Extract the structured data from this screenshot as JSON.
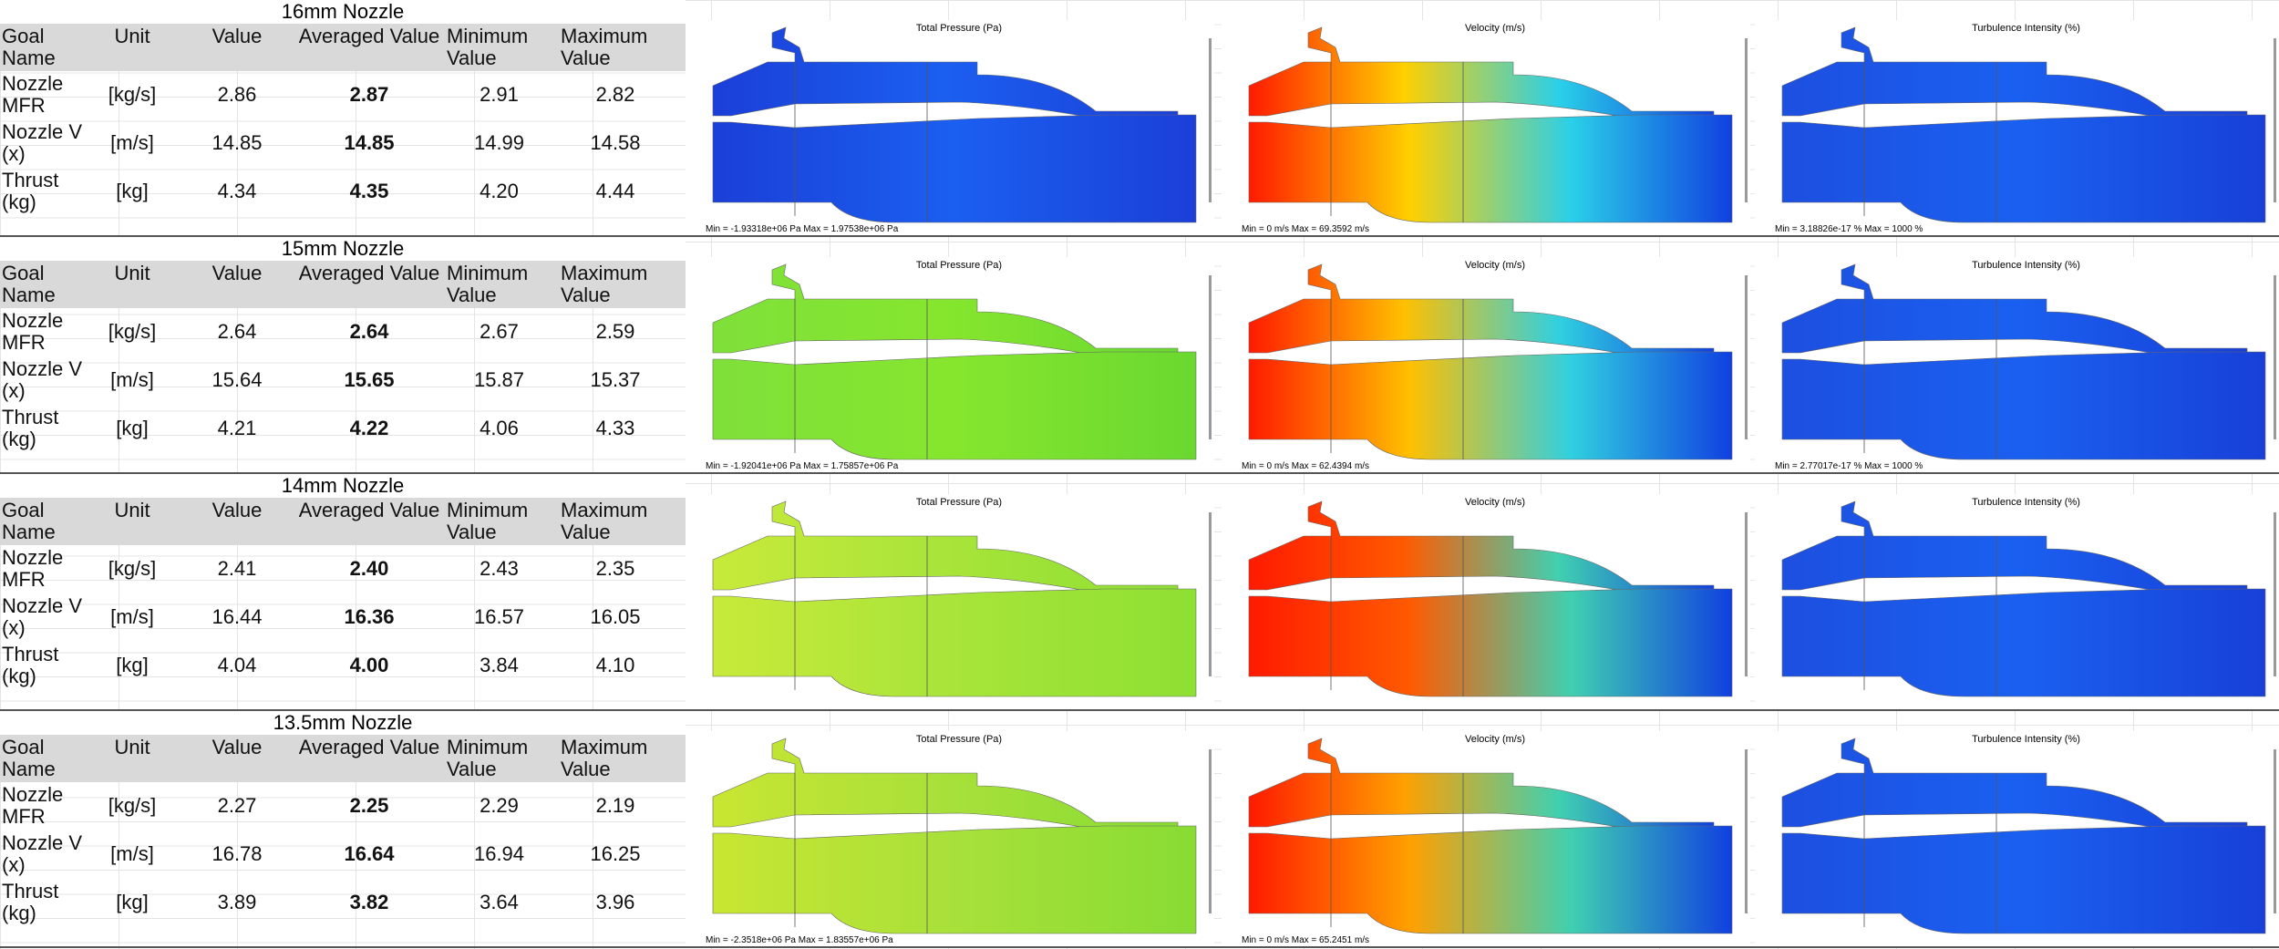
{
  "blocks": [
    {
      "title": "16mm Nozzle",
      "headers": [
        "Goal Name",
        "Unit",
        "Value",
        "Averaged Value",
        "Minimum Value",
        "Maximum Value"
      ],
      "rows": [
        [
          "Nozzle MFR",
          "[kg/s]",
          "2.86",
          "2.87",
          "2.91",
          "2.82"
        ],
        [
          "Nozzle V (x)",
          "[m/s]",
          "14.85",
          "14.85",
          "14.99",
          "14.58"
        ],
        [
          "Thrust (kg)",
          "[kg]",
          "4.34",
          "4.35",
          "4.20",
          "4.44"
        ]
      ],
      "panels": [
        {
          "title": "Total Pressure (Pa)",
          "footer": "Min = -1.93318e+06 Pa   Max = 1.97538e+06 Pa"
        },
        {
          "title": "Velocity (m/s)",
          "footer": "Min = 0 m/s   Max = 69.3592 m/s"
        },
        {
          "title": "Turbulence Intensity (%)",
          "footer": "Min = 3.18826e-17 %   Max = 1000 %"
        }
      ]
    },
    {
      "title": "15mm Nozzle",
      "headers": [
        "Goal Name",
        "Unit",
        "Value",
        "Averaged Value",
        "Minimum Value",
        "Maximum Value"
      ],
      "rows": [
        [
          "Nozzle MFR",
          "[kg/s]",
          "2.64",
          "2.64",
          "2.67",
          "2.59"
        ],
        [
          "Nozzle V (x)",
          "[m/s]",
          "15.64",
          "15.65",
          "15.87",
          "15.37"
        ],
        [
          "Thrust (kg)",
          "[kg]",
          "4.21",
          "4.22",
          "4.06",
          "4.33"
        ]
      ],
      "panels": [
        {
          "title": "Total Pressure (Pa)",
          "footer": "Min = -1.92041e+06 Pa   Max = 1.75857e+06 Pa"
        },
        {
          "title": "Velocity (m/s)",
          "footer": "Min = 0 m/s   Max = 62.4394 m/s"
        },
        {
          "title": "Turbulence Intensity (%)",
          "footer": "Min = 2.77017e-17 %   Max = 1000 %"
        }
      ]
    },
    {
      "title": "14mm Nozzle",
      "headers": [
        "Goal Name",
        "Unit",
        "Value",
        "Averaged Value",
        "Minimum Value",
        "Maximum Value"
      ],
      "rows": [
        [
          "Nozzle MFR",
          "[kg/s]",
          "2.41",
          "2.40",
          "2.43",
          "2.35"
        ],
        [
          "Nozzle V (x)",
          "[m/s]",
          "16.44",
          "16.36",
          "16.57",
          "16.05"
        ],
        [
          "Thrust (kg)",
          "[kg]",
          "4.04",
          "4.00",
          "3.84",
          "4.10"
        ]
      ],
      "panels": [
        {
          "title": "Total Pressure (Pa)"
        },
        {
          "title": "Velocity (m/s)"
        },
        {
          "title": "Turbulence Intensity (%)"
        }
      ]
    },
    {
      "title": "13.5mm Nozzle",
      "headers": [
        "Goal Name",
        "Unit",
        "Value",
        "Averaged Value",
        "Minimum Value",
        "Maximum Value"
      ],
      "rows": [
        [
          "Nozzle MFR",
          "[kg/s]",
          "2.27",
          "2.25",
          "2.29",
          "2.19"
        ],
        [
          "Nozzle V (x)",
          "[m/s]",
          "16.78",
          "16.64",
          "16.94",
          "16.25"
        ],
        [
          "Thrust (kg)",
          "[kg]",
          "3.89",
          "3.82",
          "3.64",
          "3.96"
        ]
      ],
      "panels": [
        {
          "title": "Total Pressure (Pa)",
          "footer": "Min = -2.3518e+06 Pa   Max = 1.83557e+06 Pa"
        },
        {
          "title": "Velocity (m/s)",
          "footer": "Min = 0 m/s   Max = 65.2451 m/s"
        },
        {
          "title": "Turbulence Intensity (%)"
        }
      ]
    }
  ]
}
